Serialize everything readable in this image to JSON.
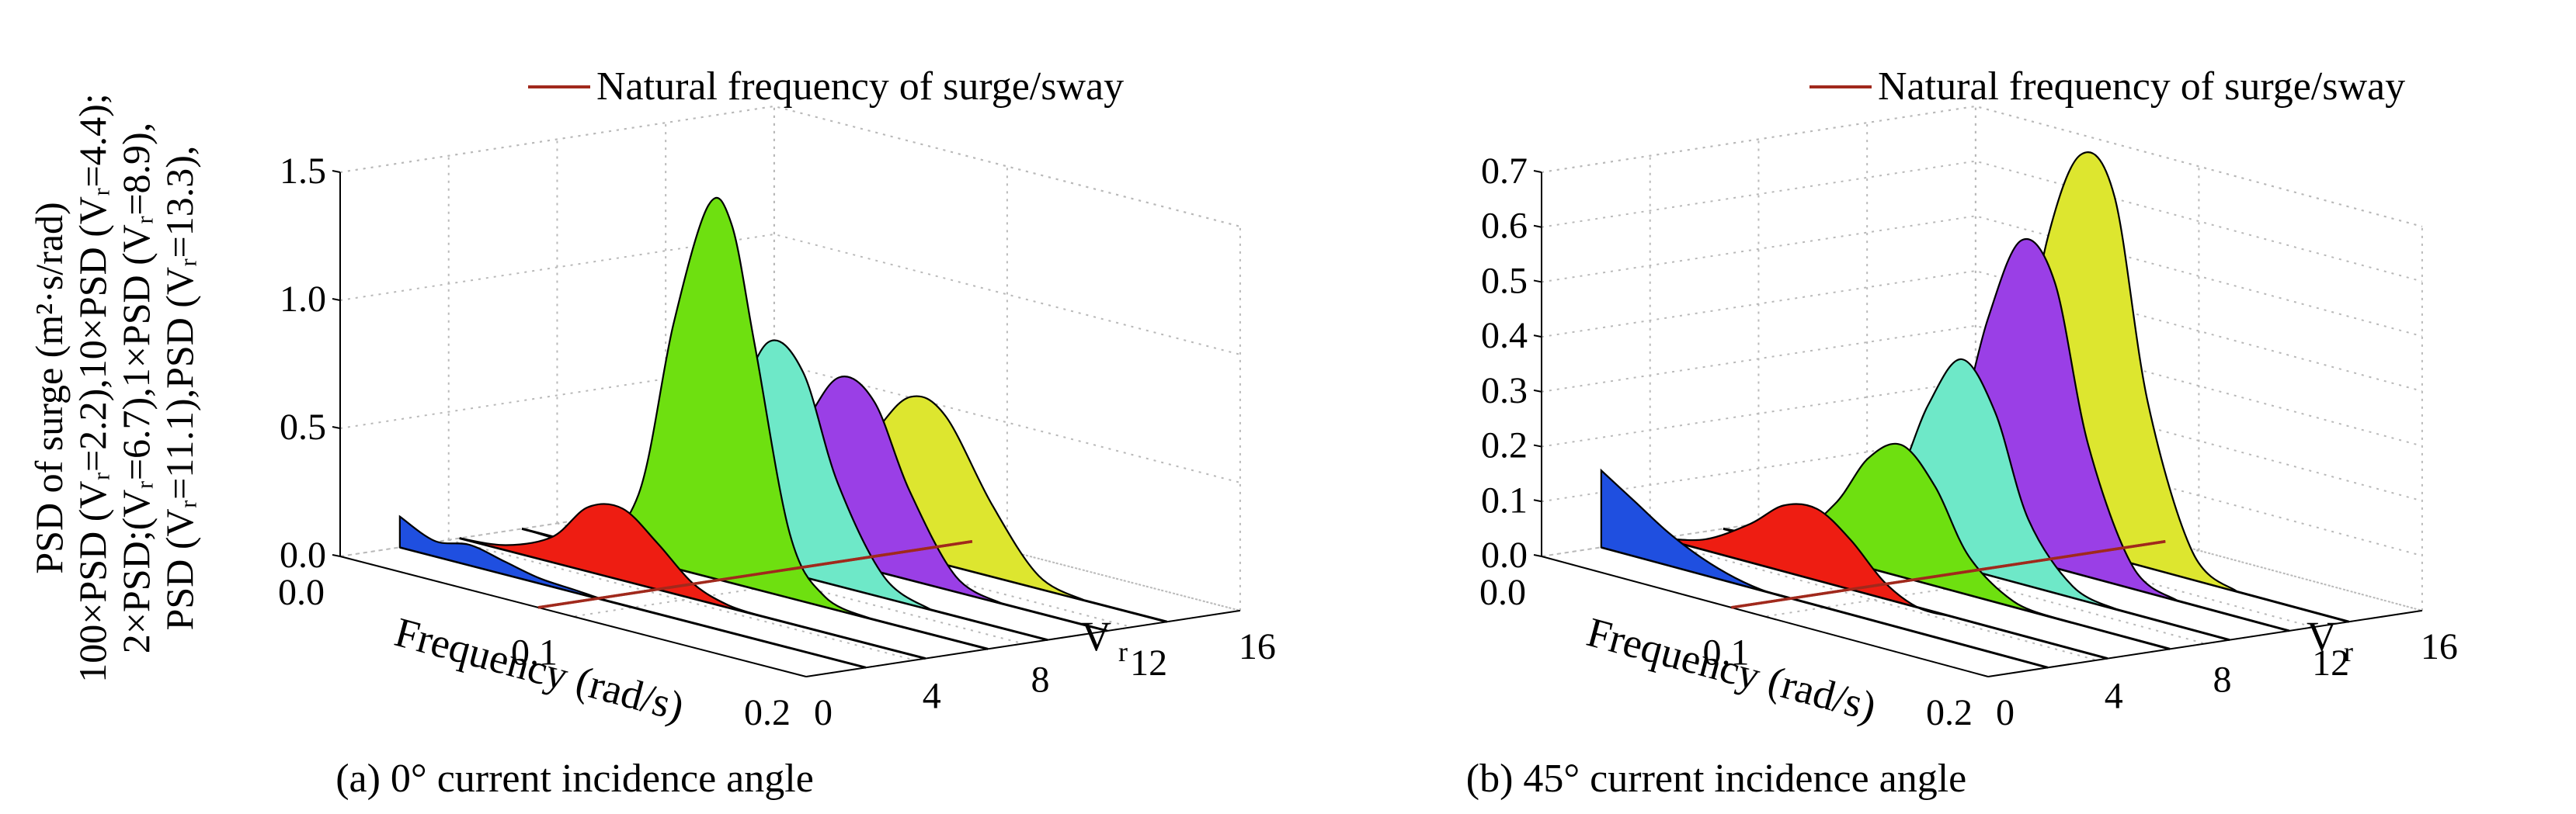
{
  "y_axis_label_lines": [
    "PSD of surge (m²·s/rad)",
    "100×PSD (Vᵣ=2.2),10×PSD (Vᵣ=4.4);",
    "2×PSD;(Vᵣ=6.7),1×PSD (Vᵣ=8.9),",
    "PSD (Vᵣ=11.1),PSD (Vᵣ=13.3),"
  ],
  "chart_data": [
    {
      "type": "3d-waterfall",
      "caption": "(a) 0° current incidence angle",
      "legend": "Natural frequency of surge/sway",
      "legend_color": "#a0291c",
      "xlabel": "Frequency (rad/s)",
      "xticks": [
        "0.0",
        "0.1",
        "0.2"
      ],
      "xlim": [
        0,
        0.2
      ],
      "vlabel": "V",
      "vlabel_sub": "r",
      "vticks": [
        "0",
        "4",
        "8",
        "12",
        "16"
      ],
      "vlim": [
        0,
        16
      ],
      "zticks": [
        "0.0",
        "0.5",
        "1.0",
        "1.5"
      ],
      "zlim": [
        0,
        1.5
      ],
      "natural_frequency": 0.085,
      "series": [
        {
          "vr": 2.2,
          "color": "#1f4fe0",
          "freq": [
            0.0,
            0.015,
            0.03,
            0.045,
            0.06,
            0.075,
            0.09,
            0.105
          ],
          "psd": [
            0.12,
            0.06,
            0.08,
            0.05,
            0.02,
            0.01,
            0.0,
            0.0
          ]
        },
        {
          "vr": 4.4,
          "color": "#ee1d12",
          "freq": [
            0.0,
            0.02,
            0.04,
            0.055,
            0.07,
            0.085,
            0.1,
            0.115,
            0.13
          ],
          "psd": [
            0.0,
            0.02,
            0.1,
            0.25,
            0.28,
            0.18,
            0.06,
            0.01,
            0.0
          ]
        },
        {
          "vr": 6.7,
          "color": "#6ee010",
          "freq": [
            0.0,
            0.03,
            0.05,
            0.065,
            0.08,
            0.09,
            0.1,
            0.115,
            0.13,
            0.15
          ],
          "psd": [
            0.0,
            0.02,
            0.25,
            0.95,
            1.45,
            1.4,
            0.95,
            0.25,
            0.04,
            0.0
          ]
        },
        {
          "vr": 8.9,
          "color": "#6ee8c8",
          "freq": [
            0.0,
            0.03,
            0.05,
            0.065,
            0.08,
            0.095,
            0.11,
            0.13,
            0.15
          ],
          "psd": [
            0.0,
            0.02,
            0.18,
            0.55,
            0.88,
            0.8,
            0.4,
            0.08,
            0.0
          ]
        },
        {
          "vr": 11.1,
          "color": "#9a3fe6",
          "freq": [
            0.0,
            0.03,
            0.05,
            0.07,
            0.085,
            0.1,
            0.115,
            0.135,
            0.155
          ],
          "psd": [
            0.0,
            0.02,
            0.15,
            0.5,
            0.72,
            0.66,
            0.35,
            0.06,
            0.0
          ]
        },
        {
          "vr": 13.3,
          "color": "#dde62f",
          "freq": [
            0.0,
            0.035,
            0.055,
            0.075,
            0.09,
            0.105,
            0.125,
            0.145,
            0.165
          ],
          "psd": [
            0.0,
            0.02,
            0.14,
            0.45,
            0.62,
            0.58,
            0.28,
            0.05,
            0.0
          ]
        }
      ]
    },
    {
      "type": "3d-waterfall",
      "caption": "(b) 45° current incidence angle",
      "legend": "Natural frequency of surge/sway",
      "legend_color": "#a0291c",
      "xlabel": "Frequency (rad/s)",
      "xticks": [
        "0.0",
        "0.1",
        "0.2"
      ],
      "xlim": [
        0,
        0.2
      ],
      "vlabel": "V",
      "vlabel_sub": "r",
      "vticks": [
        "0",
        "4",
        "8",
        "12",
        "16"
      ],
      "vlim": [
        0,
        16
      ],
      "zticks": [
        "0.0",
        "0.1",
        "0.2",
        "0.3",
        "0.4",
        "0.5",
        "0.6",
        "0.7"
      ],
      "zlim": [
        0,
        0.7
      ],
      "natural_frequency": 0.085,
      "series": [
        {
          "vr": 2.2,
          "color": "#1f4fe0",
          "freq": [
            0.0,
            0.015,
            0.03,
            0.045,
            0.06,
            0.075,
            0.09,
            0.105
          ],
          "psd": [
            0.14,
            0.1,
            0.06,
            0.03,
            0.01,
            0.0,
            0.0,
            0.0
          ]
        },
        {
          "vr": 4.4,
          "color": "#ee1d12",
          "freq": [
            0.0,
            0.02,
            0.04,
            0.055,
            0.07,
            0.085,
            0.1,
            0.115,
            0.13
          ],
          "psd": [
            0.0,
            0.02,
            0.07,
            0.12,
            0.13,
            0.09,
            0.03,
            0.0,
            0.0
          ]
        },
        {
          "vr": 6.7,
          "color": "#6ee010",
          "freq": [
            0.0,
            0.03,
            0.05,
            0.065,
            0.08,
            0.095,
            0.11,
            0.13,
            0.15
          ],
          "psd": [
            0.0,
            0.02,
            0.1,
            0.2,
            0.24,
            0.18,
            0.07,
            0.01,
            0.0
          ]
        },
        {
          "vr": 8.9,
          "color": "#6ee8c8",
          "freq": [
            0.0,
            0.03,
            0.05,
            0.065,
            0.08,
            0.095,
            0.11,
            0.13,
            0.15
          ],
          "psd": [
            0.0,
            0.02,
            0.12,
            0.28,
            0.38,
            0.3,
            0.12,
            0.02,
            0.0
          ]
        },
        {
          "vr": 11.1,
          "color": "#9a3fe6",
          "freq": [
            0.0,
            0.03,
            0.05,
            0.065,
            0.08,
            0.095,
            0.11,
            0.13,
            0.15
          ],
          "psd": [
            0.0,
            0.02,
            0.18,
            0.42,
            0.58,
            0.52,
            0.24,
            0.04,
            0.0
          ]
        },
        {
          "vr": 13.3,
          "color": "#dde62f",
          "freq": [
            0.0,
            0.03,
            0.05,
            0.065,
            0.08,
            0.095,
            0.11,
            0.13,
            0.15
          ],
          "psd": [
            0.0,
            0.02,
            0.22,
            0.55,
            0.72,
            0.66,
            0.3,
            0.05,
            0.0
          ]
        }
      ]
    }
  ]
}
